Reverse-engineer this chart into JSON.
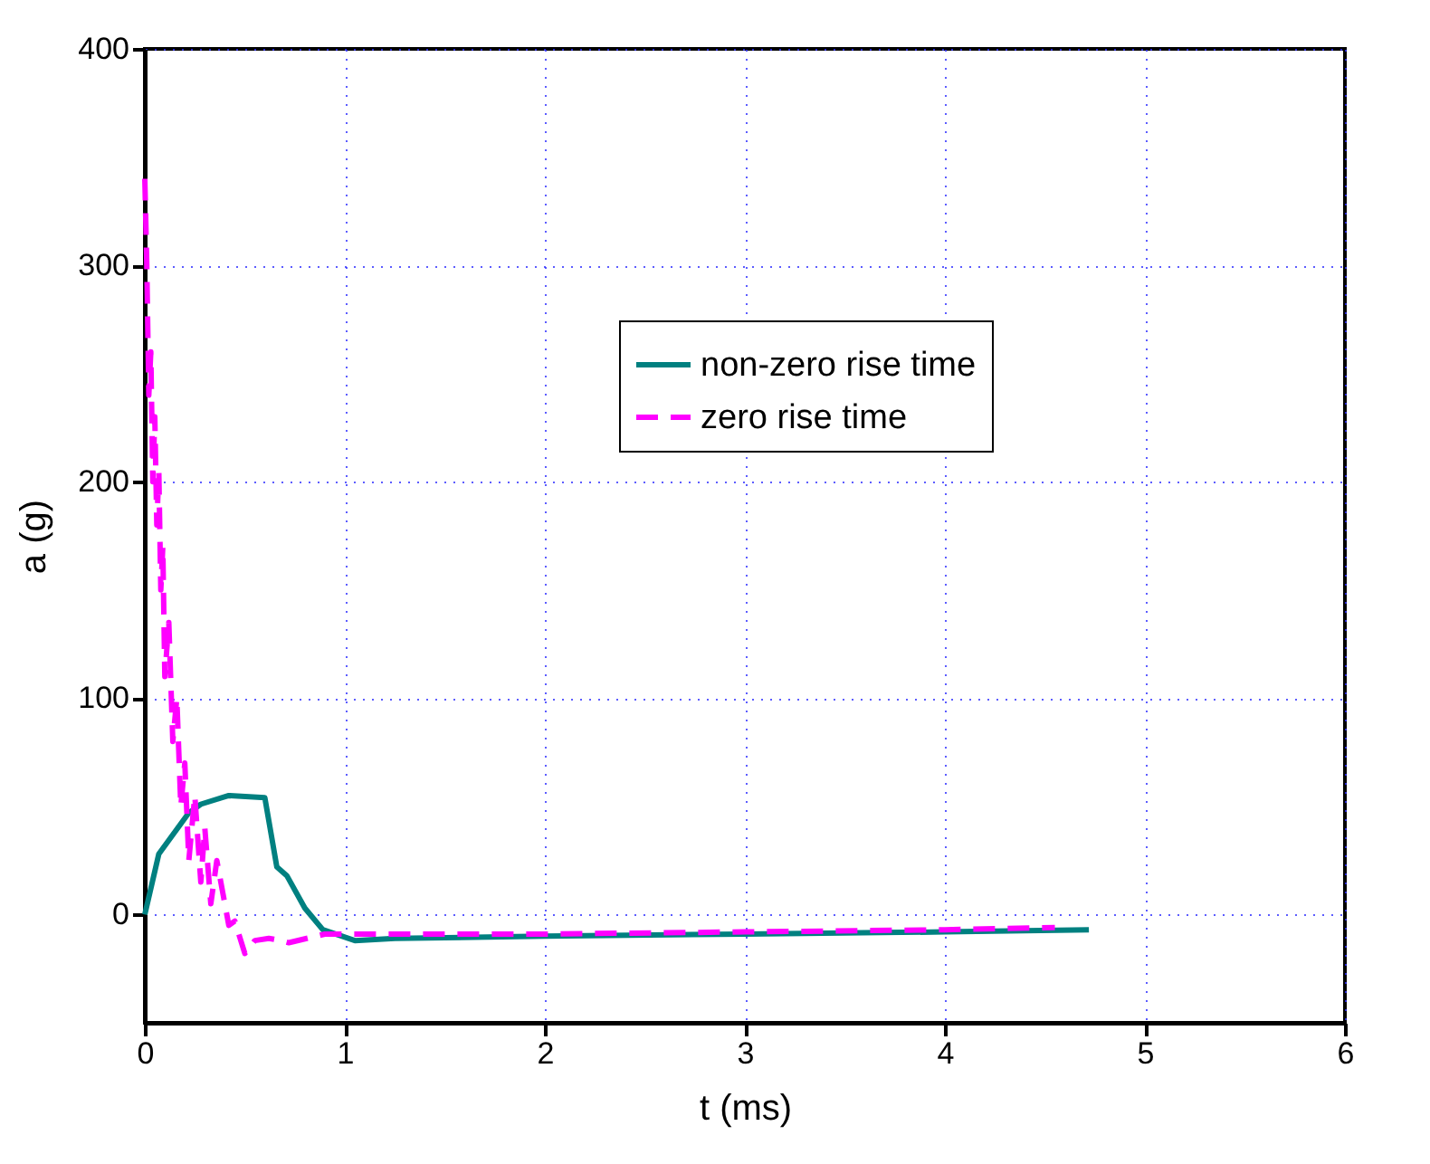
{
  "chart_data": {
    "type": "line",
    "xlabel": "t (ms)",
    "ylabel": "a (g)",
    "xlim": [
      0,
      6
    ],
    "ylim": [
      -50,
      400
    ],
    "xticks": [
      0,
      1,
      2,
      3,
      4,
      5,
      6
    ],
    "yticks": [
      0,
      100,
      200,
      300,
      400
    ],
    "grid": true,
    "legend": "top right",
    "marker": "none",
    "series": [
      {
        "name": "non-zero rise time",
        "color": "#008080",
        "line_style": "solid",
        "x": [
          0,
          0.07,
          0.22,
          0.28,
          0.42,
          0.6,
          0.66,
          0.71,
          0.8,
          0.89,
          1.05,
          1.25,
          2,
          3,
          4,
          4.72
        ],
        "values": [
          0,
          28,
          47,
          51,
          55,
          54,
          22,
          18,
          3,
          -7,
          -12,
          -11,
          -10,
          -9,
          -8,
          -7
        ]
      },
      {
        "name": "zero rise time",
        "color": "#ff00ff",
        "line_style": "dashed",
        "x": [
          0,
          0.01,
          0.02,
          0.03,
          0.04,
          0.05,
          0.06,
          0.07,
          0.08,
          0.09,
          0.1,
          0.12,
          0.14,
          0.16,
          0.18,
          0.2,
          0.22,
          0.25,
          0.28,
          0.3,
          0.33,
          0.36,
          0.42,
          0.45,
          0.5,
          0.55,
          0.62,
          0.68,
          0.72,
          0.9,
          1.5,
          2,
          3,
          4,
          4.55
        ],
        "values": [
          340,
          300,
          240,
          260,
          200,
          230,
          180,
          205,
          150,
          170,
          110,
          135,
          80,
          100,
          50,
          70,
          25,
          55,
          15,
          40,
          5,
          25,
          -5,
          -3,
          -18,
          -12,
          -11,
          -12,
          -13,
          -9,
          -9,
          -9,
          -8,
          -7,
          -6
        ]
      }
    ]
  }
}
